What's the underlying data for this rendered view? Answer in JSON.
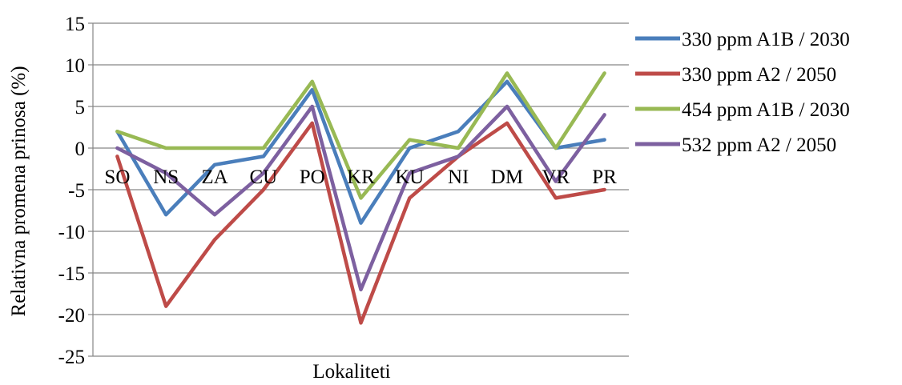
{
  "chart_data": {
    "type": "line",
    "title": "",
    "xlabel": "Lokaliteti",
    "ylabel": "Relativna promena prinosa (%)",
    "ylim": [
      -25,
      15
    ],
    "yticks": [
      -25,
      -20,
      -15,
      -10,
      -5,
      0,
      5,
      10,
      15
    ],
    "grid": true,
    "legend": "right",
    "categories": [
      "SO",
      "NS",
      "ZA",
      "CU",
      "PO",
      "KR",
      "KU",
      "NI",
      "DM",
      "VR",
      "PR"
    ],
    "series": [
      {
        "name": "330 ppm A1B / 2030",
        "color": "#4a7ebb",
        "values": [
          2,
          -8,
          -2,
          -1,
          7,
          -9,
          0,
          2,
          8,
          0,
          1
        ]
      },
      {
        "name": "330 ppm A2 / 2050",
        "color": "#be4b48",
        "values": [
          -1,
          -19,
          -11,
          -5,
          3,
          -21,
          -6,
          -1,
          3,
          -6,
          -5
        ]
      },
      {
        "name": "454 ppm A1B / 2030",
        "color": "#98b954",
        "values": [
          2,
          0,
          0,
          0,
          8,
          -6,
          1,
          0,
          9,
          0,
          9
        ]
      },
      {
        "name": "532 ppm A2 / 2050",
        "color": "#7d60a0",
        "values": [
          0,
          -3,
          -8,
          -3,
          5,
          -17,
          -3,
          -1,
          5,
          -4,
          4
        ]
      }
    ]
  }
}
